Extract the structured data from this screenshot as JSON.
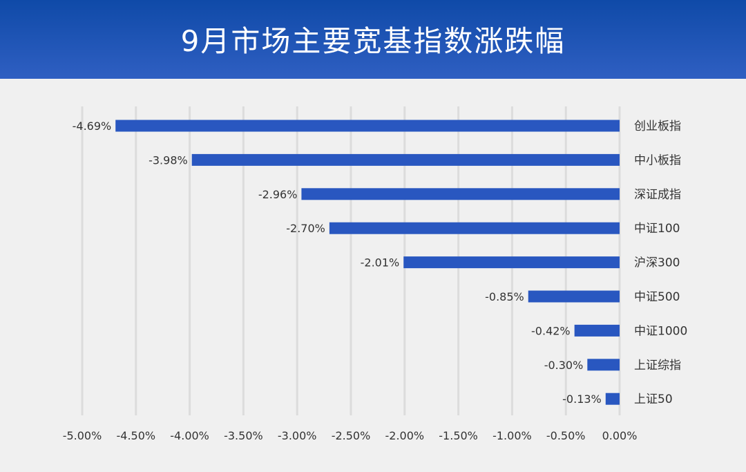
{
  "header": {
    "title": "9月市场主要宽基指数涨跌幅"
  },
  "colors": {
    "bar": "#2957c0",
    "grid": "#dcdcdc",
    "text": "#333333",
    "header_top": "#0f4aa8",
    "header_bottom": "#2f5fc2"
  },
  "chart_data": {
    "type": "bar",
    "orientation": "horizontal",
    "title": "9月市场主要宽基指数涨跌幅",
    "categories": [
      "创业板指",
      "中小板指",
      "深证成指",
      "中证100",
      "沪深300",
      "中证500",
      "中证1000",
      "上证综指",
      "上证50"
    ],
    "values": [
      -4.69,
      -3.98,
      -2.96,
      -2.7,
      -2.01,
      -0.85,
      -0.42,
      -0.3,
      -0.13
    ],
    "data_labels": [
      "-4.69%",
      "-3.98%",
      "-2.96%",
      "-2.70%",
      "-2.01%",
      "-0.85%",
      "-0.42%",
      "-0.30%",
      "-0.13%"
    ],
    "xlim": [
      -5.0,
      0.0
    ],
    "xticks": [
      -5.0,
      -4.5,
      -4.0,
      -3.5,
      -3.0,
      -2.5,
      -2.0,
      -1.5,
      -1.0,
      -0.5,
      0.0
    ],
    "xtick_labels": [
      "-5.00%",
      "-4.50%",
      "-4.00%",
      "-3.50%",
      "-3.00%",
      "-2.50%",
      "-2.00%",
      "-1.50%",
      "-1.00%",
      "-0.50%",
      "0.00%"
    ],
    "grid": true,
    "legend": "none"
  }
}
